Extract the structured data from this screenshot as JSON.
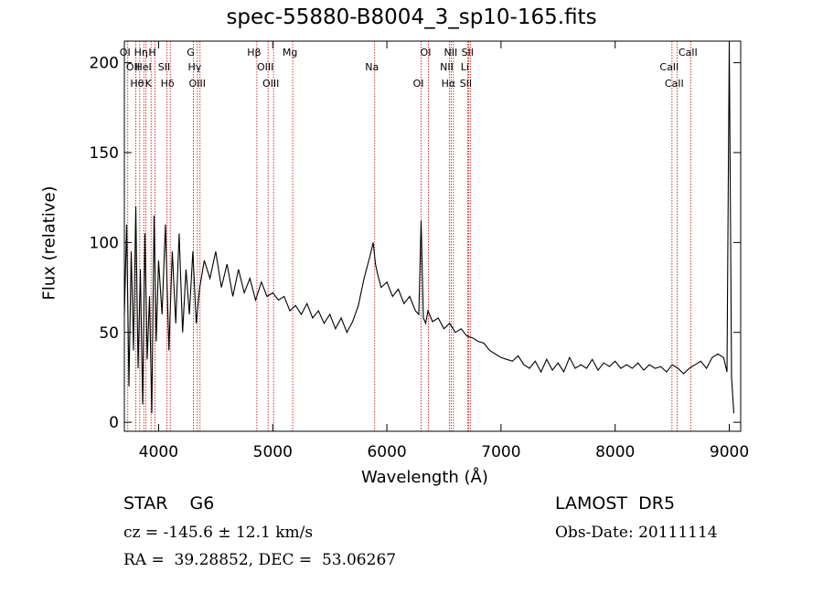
{
  "chart_data": {
    "type": "line",
    "title": "spec-55880-B8004_3_sp10-165.fits",
    "xlabel": "Wavelength (Å)",
    "ylabel": "Flux (relative)",
    "xlim": [
      3700,
      9100
    ],
    "ylim": [
      -5,
      212
    ],
    "x_ticks": [
      4000,
      5000,
      6000,
      7000,
      8000,
      9000
    ],
    "y_ticks": [
      0,
      50,
      100,
      150,
      200
    ],
    "grid": false,
    "series": [
      {
        "x": [
          3700,
          3720,
          3740,
          3760,
          3780,
          3800,
          3820,
          3840,
          3860,
          3880,
          3900,
          3920,
          3940,
          3960,
          3980,
          4000,
          4030,
          4060,
          4090,
          4120,
          4150,
          4180,
          4210,
          4240,
          4270,
          4300,
          4330,
          4360,
          4400,
          4450,
          4500,
          4550,
          4600,
          4650,
          4700,
          4750,
          4800,
          4850,
          4900,
          4950,
          5000,
          5050,
          5100,
          5150,
          5200,
          5250,
          5300,
          5350,
          5400,
          5450,
          5500,
          5550,
          5600,
          5650,
          5700,
          5750,
          5800,
          5850,
          5880,
          5900,
          5920,
          5950,
          6000,
          6050,
          6100,
          6150,
          6200,
          6250,
          6280,
          6300,
          6320,
          6340,
          6360,
          6400,
          6450,
          6500,
          6550,
          6600,
          6650,
          6700,
          6750,
          6800,
          6850,
          6900,
          6950,
          7000,
          7050,
          7100,
          7150,
          7200,
          7250,
          7300,
          7350,
          7400,
          7450,
          7500,
          7550,
          7600,
          7650,
          7700,
          7750,
          7800,
          7850,
          7900,
          7950,
          8000,
          8050,
          8100,
          8150,
          8200,
          8250,
          8300,
          8350,
          8400,
          8450,
          8500,
          8550,
          8600,
          8650,
          8700,
          8750,
          8800,
          8850,
          8900,
          8950,
          8980,
          9000,
          9020,
          9040
        ],
        "y": [
          60,
          110,
          20,
          95,
          40,
          120,
          30,
          85,
          10,
          105,
          35,
          70,
          5,
          115,
          45,
          90,
          60,
          110,
          40,
          95,
          55,
          105,
          50,
          85,
          60,
          95,
          55,
          75,
          90,
          80,
          95,
          75,
          88,
          70,
          85,
          72,
          80,
          68,
          78,
          70,
          72,
          68,
          70,
          62,
          65,
          60,
          66,
          58,
          62,
          55,
          60,
          52,
          58,
          50,
          56,
          65,
          80,
          92,
          100,
          88,
          82,
          75,
          78,
          70,
          74,
          66,
          70,
          62,
          60,
          112,
          58,
          55,
          62,
          56,
          58,
          52,
          55,
          50,
          52,
          48,
          47,
          45,
          44,
          40,
          38,
          36,
          35,
          34,
          37,
          32,
          30,
          34,
          28,
          35,
          29,
          33,
          28,
          36,
          30,
          32,
          30,
          35,
          29,
          33,
          31,
          34,
          30,
          32,
          30,
          33,
          29,
          32,
          30,
          31,
          28,
          32,
          30,
          27,
          30,
          32,
          34,
          30,
          36,
          38,
          36,
          28,
          212,
          25,
          5
        ]
      }
    ],
    "lines": [
      {
        "x": 3730,
        "label": "OI"
      },
      {
        "x": 3800,
        "label": "OII"
      },
      {
        "x": 3835,
        "label": "Hθ"
      },
      {
        "x": 3870,
        "label": "Hη"
      },
      {
        "x": 3889,
        "label": "HeI"
      },
      {
        "x": 3934,
        "label": "K"
      },
      {
        "x": 3969,
        "label": "H"
      },
      {
        "x": 4072,
        "label": "SII"
      },
      {
        "x": 4102,
        "label": "Hδ"
      },
      {
        "x": 4305,
        "label": "G"
      },
      {
        "x": 4340,
        "label": "Hγ"
      },
      {
        "x": 4363,
        "label": "OIII"
      },
      {
        "x": 4861,
        "label": "Hβ"
      },
      {
        "x": 4959,
        "label": "OIII"
      },
      {
        "x": 5007,
        "label": "OIII"
      },
      {
        "x": 5175,
        "label": "Mg"
      },
      {
        "x": 5893,
        "label": "Na"
      },
      {
        "x": 6300,
        "label": "OI"
      },
      {
        "x": 6364,
        "label": "OI"
      },
      {
        "x": 6548,
        "label": "NII"
      },
      {
        "x": 6563,
        "label": "Hα"
      },
      {
        "x": 6583,
        "label": "NII"
      },
      {
        "x": 6707,
        "label": "Li"
      },
      {
        "x": 6716,
        "label": "SII"
      },
      {
        "x": 6731,
        "label": "SII"
      },
      {
        "x": 8498,
        "label": "CaII"
      },
      {
        "x": 8542,
        "label": "CaII"
      },
      {
        "x": 8662,
        "label": "CaII"
      }
    ]
  },
  "info": {
    "object": "STAR    G6",
    "survey": "LAMOST  DR5",
    "cz": "cz = -145.6 ± 12.1 km/s",
    "obs_date": "Obs-Date: 20111114",
    "coords": "RA =  39.28852, DEC =  53.06267"
  },
  "colors": {
    "spectrum": "#000000",
    "line_markers": "#cc0000",
    "axes": "#000000"
  }
}
